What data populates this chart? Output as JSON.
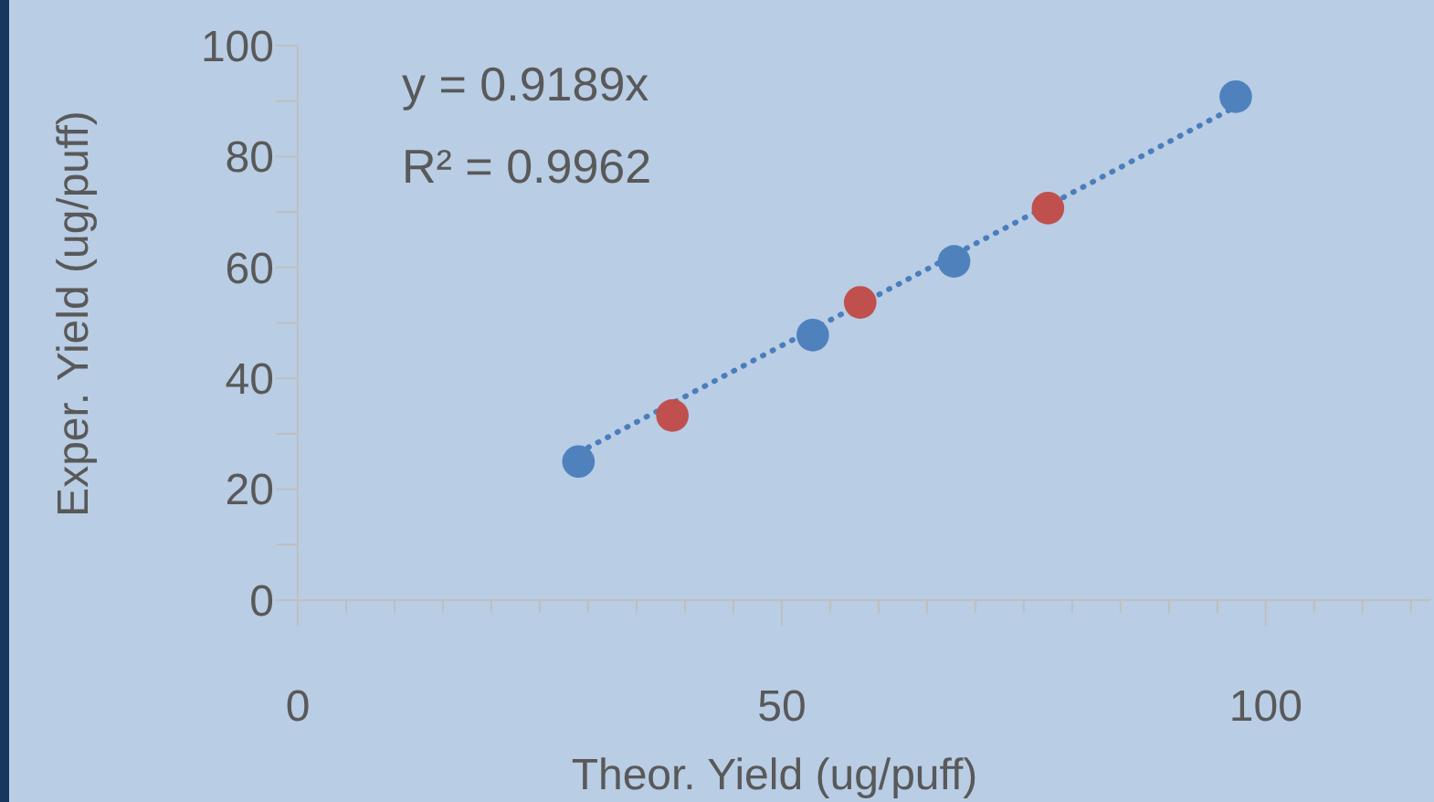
{
  "chart_data": {
    "type": "scatter",
    "xlabel": "Theor. Yield (ug/puff)",
    "ylabel": "Exper. Yield (ug/puff)",
    "xlim": [
      0,
      117
    ],
    "ylim": [
      0,
      100
    ],
    "xticks": [
      0,
      {
        "value": 5,
        "label": null
      },
      {
        "value": 10,
        "label": null
      },
      {
        "value": 15,
        "label": null
      },
      {
        "value": 20,
        "label": null
      },
      {
        "value": 25,
        "label": null
      },
      {
        "value": 30,
        "label": null
      },
      {
        "value": 35,
        "label": null
      },
      {
        "value": 40,
        "label": null
      },
      {
        "value": 45,
        "label": null
      },
      50,
      {
        "value": 55,
        "label": null
      },
      {
        "value": 60,
        "label": null
      },
      {
        "value": 65,
        "label": null
      },
      {
        "value": 70,
        "label": null
      },
      {
        "value": 75,
        "label": null
      },
      {
        "value": 80,
        "label": null
      },
      {
        "value": 85,
        "label": null
      },
      {
        "value": 90,
        "label": null
      },
      {
        "value": 95,
        "label": null
      },
      100,
      {
        "value": 105,
        "label": null
      },
      {
        "value": 110,
        "label": null
      },
      {
        "value": 115,
        "label": null
      }
    ],
    "yticks": [
      0,
      {
        "value": 10,
        "label": null
      },
      20,
      {
        "value": 30,
        "label": null
      },
      40,
      {
        "value": 50,
        "label": null
      },
      60,
      {
        "value": 70,
        "label": null
      },
      80,
      {
        "value": 90,
        "label": null
      },
      100
    ],
    "grid": false,
    "marker": "circle",
    "series": [
      {
        "type": "line",
        "color": "#4a7ebb",
        "line_style": "dotted",
        "marker": "none",
        "x": [
          29,
          97
        ],
        "values": [
          26.6,
          89.1
        ]
      },
      {
        "color": "#4f81bd",
        "x": [
          29.0,
          53.2,
          67.8,
          96.9
        ],
        "values": [
          25.0,
          47.8,
          61.1,
          90.8
        ]
      },
      {
        "color": "#c0504d",
        "x": [
          38.7,
          58.1,
          77.5
        ],
        "values": [
          33.3,
          53.7,
          70.7
        ]
      }
    ],
    "annotations": [
      "y = 0.9189x",
      "R² = 0.9962"
    ]
  }
}
